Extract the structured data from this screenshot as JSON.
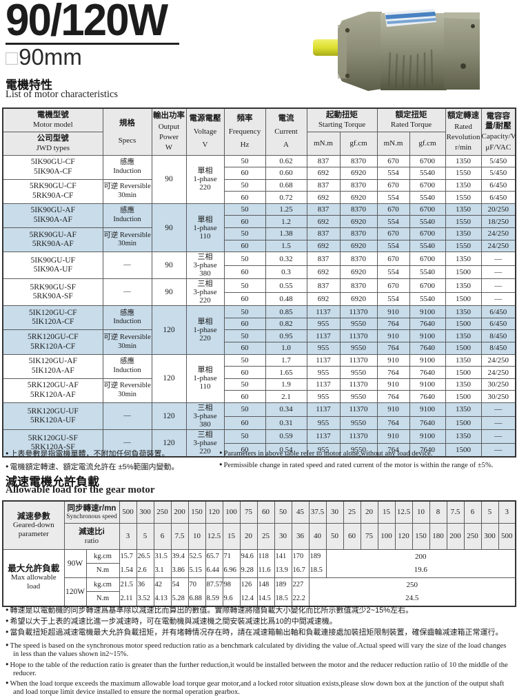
{
  "colors": {
    "row_highlight": "#c8dcea",
    "table_header_bg": "#e9e9e9",
    "load_header_bg": "#ebebeb",
    "border": "#5a5a5a",
    "border_strong": "#333333",
    "title_color": "#1c1c1c"
  },
  "header": {
    "title": "90/120W",
    "subtitle_symbol": "□",
    "subtitle_text": "90mm"
  },
  "sections": {
    "motor_zh": "電機特性",
    "motor_en": "List of motor characteristics",
    "load_zh": "減速電機允許負載",
    "load_en": "Allowable load for the gear motor"
  },
  "motor_table": {
    "header": {
      "motor_model": [
        "電機型號",
        "Motor model"
      ],
      "jwd_types": [
        "公司型號",
        "JWD types"
      ],
      "specs": [
        "規格",
        "Specs"
      ],
      "output": [
        "輸出功率",
        "Output",
        "Power",
        "W"
      ],
      "voltage": [
        "電源電壓",
        "Voltage",
        "V"
      ],
      "frequency": [
        "頻率",
        "Frequency",
        "Hz"
      ],
      "current": [
        "電流",
        "Current",
        "A"
      ],
      "starting_torque": [
        "起動扭矩",
        "Starting Torque"
      ],
      "rated_torque": [
        "額定扭矩",
        "Rated Torque"
      ],
      "torque_unit_mn": "mN.m",
      "torque_unit_gf": "gf.cm",
      "rated_speed": [
        "額定轉速",
        "Rated",
        "Revolution",
        "r/min"
      ],
      "capacity": [
        "電容容量/耐壓",
        "Capacity/Ve",
        "μF/VAC"
      ]
    },
    "groups": [
      {
        "shaded": false,
        "output": "90",
        "voltage": [
          "單相",
          "1-phase",
          "220"
        ],
        "blocks": [
          {
            "models": [
              "5IK90GU-CF",
              "5IK90A-CF"
            ],
            "specs": [
              "感應",
              "Induction"
            ],
            "rows": [
              [
                "50",
                "0.62",
                "837",
                "8370",
                "670",
                "6700",
                "1350",
                "5/450"
              ],
              [
                "60",
                "0.60",
                "692",
                "6920",
                "554",
                "5540",
                "1550",
                "5/450"
              ]
            ]
          },
          {
            "models": [
              "5RK90GU-CF",
              "5RK90A-CF"
            ],
            "specs": [
              "可逆 Reversible",
              "30min"
            ],
            "rows": [
              [
                "50",
                "0.68",
                "837",
                "8370",
                "670",
                "6700",
                "1350",
                "6/450"
              ],
              [
                "60",
                "0.72",
                "692",
                "6920",
                "554",
                "5540",
                "1550",
                "6/450"
              ]
            ]
          }
        ]
      },
      {
        "shaded": true,
        "output": "90",
        "voltage": [
          "單相",
          "1-phase",
          "110"
        ],
        "blocks": [
          {
            "models": [
              "5IK90GU-AF",
              "5IK90A-AF"
            ],
            "specs": [
              "感應",
              "Induction"
            ],
            "rows": [
              [
                "50",
                "1.25",
                "837",
                "8370",
                "670",
                "6700",
                "1350",
                "20/250"
              ],
              [
                "60",
                "1.2",
                "692",
                "6920",
                "554",
                "5540",
                "1550",
                "18/250"
              ]
            ]
          },
          {
            "models": [
              "5RK90GU-AF",
              "5RK90A-AF"
            ],
            "specs": [
              "可逆 Reversible",
              "30min"
            ],
            "rows": [
              [
                "50",
                "1.38",
                "837",
                "8370",
                "670",
                "6700",
                "1350",
                "24/250"
              ],
              [
                "60",
                "1.5",
                "692",
                "6920",
                "554",
                "5540",
                "1550",
                "24/250"
              ]
            ]
          }
        ]
      },
      {
        "shaded": false,
        "blocks": [
          {
            "models": [
              "5IK90GU-UF",
              "5IK90A-UF"
            ],
            "specs": [
              "—"
            ],
            "output": "90",
            "voltage": [
              "三相",
              "3-phase",
              "380"
            ],
            "rows": [
              [
                "50",
                "0.32",
                "837",
                "8370",
                "670",
                "6700",
                "1350",
                "—"
              ],
              [
                "60",
                "0.3",
                "692",
                "6920",
                "554",
                "5540",
                "1500",
                "—"
              ]
            ]
          },
          {
            "models": [
              "5RK90GU-SF",
              "5RK90A-SF"
            ],
            "specs": [
              "—"
            ],
            "output": "90",
            "voltage": [
              "三相",
              "3-phase",
              "220"
            ],
            "rows": [
              [
                "50",
                "0.55",
                "837",
                "8370",
                "670",
                "6700",
                "1350",
                "—"
              ],
              [
                "60",
                "0.48",
                "692",
                "6920",
                "554",
                "5540",
                "1500",
                "—"
              ]
            ]
          }
        ]
      },
      {
        "shaded": true,
        "output": "120",
        "voltage": [
          "單相",
          "1-phase",
          "220"
        ],
        "blocks": [
          {
            "models": [
              "5IK120GU-CF",
              "5IK120A-CF"
            ],
            "specs": [
              "感應",
              "Induction"
            ],
            "rows": [
              [
                "50",
                "0.85",
                "1137",
                "11370",
                "910",
                "9100",
                "1350",
                "6/450"
              ],
              [
                "60",
                "0.82",
                "955",
                "9550",
                "764",
                "7640",
                "1500",
                "6/450"
              ]
            ]
          },
          {
            "models": [
              "5RK120GU-CF",
              "5RK120A-CF"
            ],
            "specs": [
              "可逆 Reversible",
              "30min"
            ],
            "rows": [
              [
                "50",
                "0.95",
                "1137",
                "11370",
                "910",
                "9100",
                "1350",
                "8/450"
              ],
              [
                "60",
                "1.0",
                "955",
                "9550",
                "764",
                "7640",
                "1500",
                "8/450"
              ]
            ]
          }
        ]
      },
      {
        "shaded": false,
        "output": "120",
        "voltage": [
          "單相",
          "1-phase",
          "110"
        ],
        "blocks": [
          {
            "models": [
              "5IK120GU-AF",
              "5IK120A-AF"
            ],
            "specs": [
              "感應",
              "Induction"
            ],
            "rows": [
              [
                "50",
                "1.7",
                "1137",
                "11370",
                "910",
                "9100",
                "1350",
                "24/250"
              ],
              [
                "60",
                "1.65",
                "955",
                "9550",
                "764",
                "7640",
                "1500",
                "24/250"
              ]
            ]
          },
          {
            "models": [
              "5RK120GU-AF",
              "5RK120A-AF"
            ],
            "specs": [
              "可逆 Reversible",
              "30min"
            ],
            "rows": [
              [
                "50",
                "1.9",
                "1137",
                "11370",
                "910",
                "9100",
                "1350",
                "30/250"
              ],
              [
                "60",
                "2.1",
                "955",
                "9550",
                "764",
                "7640",
                "1500",
                "30/250"
              ]
            ]
          }
        ]
      },
      {
        "shaded": true,
        "blocks": [
          {
            "models": [
              "5RK120GU-UF",
              "5RK120A-UF"
            ],
            "specs": [
              "—"
            ],
            "output": "120",
            "voltage": [
              "三相",
              "3-phase",
              "380"
            ],
            "rows": [
              [
                "50",
                "0.34",
                "1137",
                "11370",
                "910",
                "9100",
                "1350",
                "—"
              ],
              [
                "60",
                "0.31",
                "955",
                "9550",
                "764",
                "7640",
                "1500",
                "—"
              ]
            ]
          },
          {
            "models": [
              "5RK120GU-SF",
              "5RK120A-SF"
            ],
            "specs": [
              "—"
            ],
            "output": "120",
            "voltage": [
              "三相",
              "3-phase",
              "220"
            ],
            "rows": [
              [
                "50",
                "0.59",
                "1137",
                "11370",
                "910",
                "9100",
                "1350",
                "—"
              ],
              [
                "60",
                "0.54",
                "955",
                "9550",
                "764",
                "7640",
                "1500",
                "—"
              ]
            ]
          }
        ]
      }
    ]
  },
  "notes_mid": {
    "zh": [
      "上表參數是指電機單體，不附加任何負荷裝置。",
      "電機額定轉速、額定電流允許在 ±5%範圍内變動。"
    ],
    "en": [
      "Parameters in above table refer to motor alone,without any load device.",
      "Permissible change in rated speed and rated current of the motor is within the range of ±5%."
    ]
  },
  "load_table": {
    "param_label": [
      "減速參數",
      "Geared-down",
      "parameter"
    ],
    "sync_label": [
      "同步轉速r/mn",
      "Synchronous speed"
    ],
    "ratio_label": [
      "減速比i",
      "ratio"
    ],
    "load_label": [
      "最大允許負載",
      "Max allowable",
      "load"
    ],
    "speeds": [
      "500",
      "300",
      "250",
      "200",
      "150",
      "120",
      "100",
      "75",
      "60",
      "50",
      "45",
      "37.5",
      "30",
      "25",
      "20",
      "15",
      "12.5",
      "10",
      "8",
      "7.5",
      "6",
      "5",
      "3"
    ],
    "ratios": [
      "3",
      "5",
      "6",
      "7.5",
      "10",
      "12.5",
      "15",
      "20",
      "25",
      "30",
      "36",
      "40",
      "50",
      "60",
      "75",
      "100",
      "120",
      "150",
      "180",
      "200",
      "250",
      "300",
      "500"
    ],
    "rows": [
      {
        "power": "90W",
        "units": [
          "kg.cm",
          "N.m"
        ],
        "kgcm": [
          "15.7",
          "26.5",
          "31.5",
          "39.4",
          "52.5",
          "65.7",
          "71",
          "94.6",
          "118",
          "141",
          "170",
          "189"
        ],
        "nm": [
          "1.54",
          "2.6",
          "3.1",
          "3.86",
          "5.15",
          "6.44",
          "6.96",
          "9.28",
          "11.6",
          "13.9",
          "16.7",
          "18.5"
        ],
        "merged_kgcm": "200",
        "merged_nm": "19.6",
        "merged_span": 11
      },
      {
        "power": "120W",
        "units": [
          "kg.cm",
          "N.m"
        ],
        "kgcm": [
          "21.5",
          "36",
          "42",
          "54",
          "70",
          "87.57",
          "98",
          "126",
          "148",
          "189",
          "227"
        ],
        "nm": [
          "2.11",
          "3.52",
          "4.13",
          "5.28",
          "6.88",
          "8.59",
          "9.6",
          "12.4",
          "14.5",
          "18.5",
          "22.2"
        ],
        "merged_kgcm": "250",
        "merged_nm": "24.5",
        "merged_span": 12
      }
    ]
  },
  "notes_bottom": {
    "zh": [
      "轉速是以電動機的同步轉速爲基準除以减速比而算出的數值。實際轉速將隨負載大小變化而比所示數值减少2~15%左右。",
      "希望以大于上表的减速比進一步减速時，可在電動機與减速機之間安裝减速比爲10的中間减速機。",
      "當負載扭矩超過减速電機最大允許負載扭矩，并有堵轉情况存在時，請在减速箱輸出軸和負載連接處加裝扭矩限制裝置，確保齒輪减速箱正常運行。"
    ],
    "en": [
      "The speed is based on the synchronous motor speed reduction ratio as a benchmark calculated by dividing the value of.Actual speed will vary the size of the load changes in less than the values shown in2~15%.",
      "Hope to the table of the reduction ratio is greater than the further reduction,it would be installed between the motor and the reducer reduction ratiio of 10 the middle of the reducer.",
      "When the load torque exceeds the maximum allowable load torque gear motor,and a locked rotor situation exists,please slow down box at the junction of the output shaft and load torque limit device installed to ensure the normal operation gearbox."
    ]
  }
}
